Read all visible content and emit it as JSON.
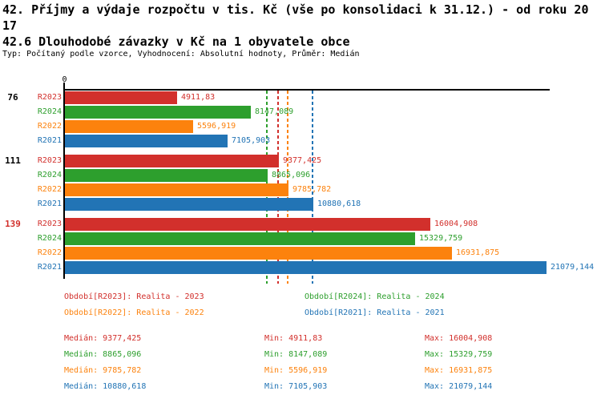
{
  "title": {
    "line1": "42. Příjmy a výdaje rozpočtu v tis. Kč (vše po konsolidaci k 31.12.) - od roku 20",
    "line2": "17",
    "heading2": "42.6 Dlouhodobé závazky v Kč na 1 obyvatele obce",
    "meta": "Typ: Počítaný podle vzorce, Vyhodnocení: Absolutní hodnoty, Průměr: Medián"
  },
  "colors": {
    "R2023": "#d2302c",
    "R2024": "#2d9f2d",
    "R2022": "#fc820d",
    "R2021": "#2274b5",
    "axis": "#000000",
    "group_label_default": "#000000"
  },
  "chart_data": {
    "type": "bar",
    "orientation": "horizontal",
    "x_axis": {
      "origin_label": "0",
      "min": 0,
      "max": 21079.144,
      "gridlines": false
    },
    "series_order": [
      "R2023",
      "R2024",
      "R2022",
      "R2021"
    ],
    "groups": [
      {
        "label": "76",
        "label_color": "#000000",
        "bars": [
          {
            "series": "R2023",
            "value": 4911.83,
            "value_label": "4911,83"
          },
          {
            "series": "R2024",
            "value": 8147.089,
            "value_label": "8147,089"
          },
          {
            "series": "R2022",
            "value": 5596.919,
            "value_label": "5596,919"
          },
          {
            "series": "R2021",
            "value": 7105.903,
            "value_label": "7105,903"
          }
        ]
      },
      {
        "label": "111",
        "label_color": "#000000",
        "bars": [
          {
            "series": "R2023",
            "value": 9377.425,
            "value_label": "9377,425"
          },
          {
            "series": "R2024",
            "value": 8865.096,
            "value_label": "8865,096"
          },
          {
            "series": "R2022",
            "value": 9785.782,
            "value_label": "9785,782"
          },
          {
            "series": "R2021",
            "value": 10880.618,
            "value_label": "10880,618"
          }
        ]
      },
      {
        "label": "139",
        "label_color": "#d2302c",
        "bars": [
          {
            "series": "R2023",
            "value": 16004.908,
            "value_label": "16004,908"
          },
          {
            "series": "R2024",
            "value": 15329.759,
            "value_label": "15329,759"
          },
          {
            "series": "R2022",
            "value": 16931.875,
            "value_label": "16931,875"
          },
          {
            "series": "R2021",
            "value": 21079.144,
            "value_label": "21079,144"
          }
        ]
      }
    ],
    "medians": [
      {
        "series": "R2023",
        "value": 9377.425
      },
      {
        "series": "R2024",
        "value": 8865.096
      },
      {
        "series": "R2022",
        "value": 9785.782
      },
      {
        "series": "R2021",
        "value": 10880.618
      }
    ],
    "series_stats": [
      {
        "series": "R2023",
        "median": 9377.425,
        "min": 4911.83,
        "max": 16004.908
      },
      {
        "series": "R2024",
        "median": 8865.096,
        "min": 8147.089,
        "max": 15329.759
      },
      {
        "series": "R2022",
        "median": 9785.782,
        "min": 5596.919,
        "max": 16931.875
      },
      {
        "series": "R2021",
        "median": 10880.618,
        "min": 7105.903,
        "max": 21079.144
      }
    ]
  },
  "legend": [
    {
      "series": "R2023",
      "label": "Období[R2023]: Realita - 2023"
    },
    {
      "series": "R2024",
      "label": "Období[R2024]: Realita - 2024"
    },
    {
      "series": "R2022",
      "label": "Období[R2022]: Realita - 2022"
    },
    {
      "series": "R2021",
      "label": "Období[R2021]: Realita - 2021"
    }
  ],
  "stats_display": [
    {
      "series": "R2023",
      "median": "Medián: 9377,425",
      "min": "Min: 4911,83",
      "max": "Max: 16004,908"
    },
    {
      "series": "R2024",
      "median": "Medián: 8865,096",
      "min": "Min: 8147,089",
      "max": "Max: 15329,759"
    },
    {
      "series": "R2022",
      "median": "Medián: 9785,782",
      "min": "Min: 5596,919",
      "max": "Max: 16931,875"
    },
    {
      "series": "R2021",
      "median": "Medián: 10880,618",
      "min": "Min: 7105,903",
      "max": "Max: 21079,144"
    }
  ]
}
